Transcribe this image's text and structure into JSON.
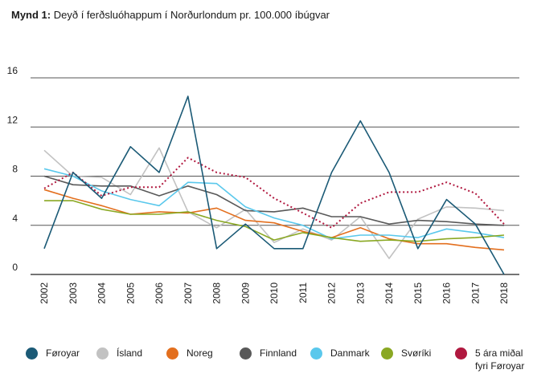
{
  "title": {
    "prefix": "Mynd 1:",
    "text": "Deyð í ferðsluóhappum í Norðurlondum pr. 100.000 íbúgvar"
  },
  "chart_data": {
    "type": "line",
    "title": "Deyð í ferðsluóhappum í Norðurlondum pr. 100.000 íbúgvar",
    "categories": [
      "2002",
      "2003",
      "2004",
      "2005",
      "2006",
      "2007",
      "2008",
      "2009",
      "2010",
      "2011",
      "2012",
      "2013",
      "2014",
      "2015",
      "2016",
      "2017",
      "2018"
    ],
    "ylim": [
      0,
      16
    ],
    "yticks": [
      0,
      4,
      8,
      12,
      16
    ],
    "grid": true,
    "legend_position": "bottom",
    "series": [
      {
        "name": "Føroyar",
        "color": "#1b5a76",
        "dash": false,
        "values": [
          2.1,
          8.3,
          6.2,
          10.4,
          8.3,
          14.5,
          2.1,
          4.1,
          2.1,
          2.1,
          8.3,
          12.5,
          8.3,
          2.1,
          6.1,
          4.1,
          0
        ]
      },
      {
        "name": "Ísland",
        "color": "#c2c2c2",
        "dash": false,
        "values": [
          10.1,
          8.0,
          7.9,
          6.5,
          10.3,
          5.1,
          3.8,
          5.3,
          2.6,
          3.7,
          2.8,
          4.7,
          1.3,
          4.5,
          5.5,
          5.4,
          5.2
        ]
      },
      {
        "name": "Noreg",
        "color": "#e36f1e",
        "dash": false,
        "values": [
          6.9,
          6.2,
          5.6,
          4.9,
          5.1,
          5.0,
          5.4,
          4.4,
          4.2,
          3.5,
          3.0,
          3.8,
          2.9,
          2.5,
          2.5,
          2.2,
          2.0
        ]
      },
      {
        "name": "Finnland",
        "color": "#595959",
        "dash": false,
        "values": [
          8.0,
          7.3,
          7.2,
          7.2,
          6.4,
          7.2,
          6.5,
          5.2,
          5.1,
          5.4,
          4.7,
          4.7,
          4.1,
          4.4,
          4.3,
          4.1,
          4.0
        ]
      },
      {
        "name": "Danmark",
        "color": "#5ac8ec",
        "dash": false,
        "values": [
          8.6,
          8.0,
          6.8,
          6.1,
          5.6,
          7.5,
          7.4,
          5.5,
          4.6,
          4.0,
          2.9,
          3.2,
          3.2,
          3.0,
          3.7,
          3.4,
          3.0
        ]
      },
      {
        "name": "Svøríki",
        "color": "#8aa823",
        "dash": false,
        "values": [
          6.0,
          6.0,
          5.3,
          4.9,
          4.9,
          5.1,
          4.4,
          3.9,
          2.8,
          3.4,
          3.0,
          2.7,
          2.8,
          2.7,
          2.9,
          3.0,
          3.2
        ]
      },
      {
        "name": "5 ára miðal\nfyri Føroyar",
        "color": "#b0183f",
        "dash": true,
        "values": [
          7.0,
          8.3,
          6.4,
          7.1,
          7.1,
          9.5,
          8.3,
          7.9,
          6.2,
          5.0,
          3.8,
          5.8,
          6.7,
          6.7,
          7.5,
          6.6,
          4.1
        ]
      }
    ]
  }
}
